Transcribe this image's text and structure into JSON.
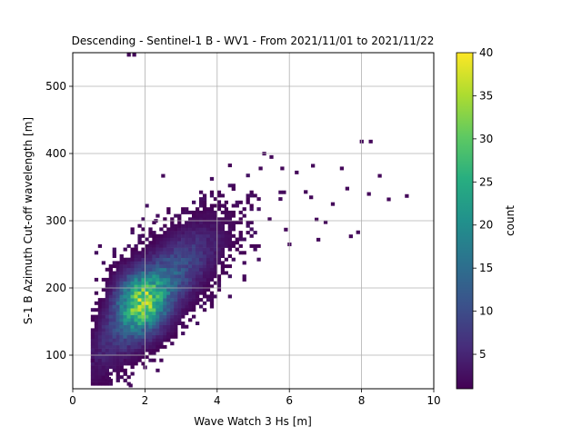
{
  "chart_data": {
    "type": "heatmap",
    "subtype": "2d-histogram",
    "title": "Descending - Sentinel-1 B - WV1 - From 2021/11/01 to 2021/11/22",
    "xlabel": "Wave Watch 3 Hs [m]",
    "ylabel": "S-1 B Azimuth Cut-off wavelength [m]",
    "xlim": [
      0,
      10
    ],
    "ylim": [
      50,
      550
    ],
    "xticks": [
      0,
      2,
      4,
      6,
      8,
      10
    ],
    "yticks": [
      100,
      200,
      300,
      400,
      500
    ],
    "grid": true,
    "colorbar": {
      "label": "count",
      "range": [
        1,
        40
      ],
      "ticks": [
        5,
        10,
        15,
        20,
        25,
        30,
        35,
        40
      ],
      "colormap": "viridis"
    },
    "density_model": {
      "description": "Joint distribution: cut-off wavelength rises with Hs; densest near Hs 1.8-2.0 m, cut-off 170-190 m (counts up to about 38)",
      "bin_width_x": 0.1,
      "bin_height_y": 5,
      "core_center": [
        1.9,
        180
      ],
      "peak_count": 38
    },
    "outlier_bins": [
      {
        "x": 1.55,
        "y": 547
      },
      {
        "x": 1.7,
        "y": 547
      },
      {
        "x": 2.5,
        "y": 367
      },
      {
        "x": 5.3,
        "y": 400
      },
      {
        "x": 5.5,
        "y": 395
      },
      {
        "x": 5.2,
        "y": 378
      },
      {
        "x": 5.8,
        "y": 378
      },
      {
        "x": 6.2,
        "y": 372
      },
      {
        "x": 6.65,
        "y": 382
      },
      {
        "x": 7.45,
        "y": 378
      },
      {
        "x": 8.0,
        "y": 418
      },
      {
        "x": 8.25,
        "y": 418
      },
      {
        "x": 8.5,
        "y": 367
      },
      {
        "x": 8.2,
        "y": 340
      },
      {
        "x": 8.75,
        "y": 332
      },
      {
        "x": 9.25,
        "y": 337
      },
      {
        "x": 7.9,
        "y": 283
      },
      {
        "x": 7.7,
        "y": 277
      },
      {
        "x": 7.0,
        "y": 298
      },
      {
        "x": 6.75,
        "y": 302
      },
      {
        "x": 7.2,
        "y": 325
      },
      {
        "x": 6.8,
        "y": 272
      },
      {
        "x": 5.9,
        "y": 287
      },
      {
        "x": 6.0,
        "y": 265
      },
      {
        "x": 0.55,
        "y": 92
      },
      {
        "x": 1.0,
        "y": 65
      },
      {
        "x": 1.6,
        "y": 55
      },
      {
        "x": 1.45,
        "y": 72
      },
      {
        "x": 2.0,
        "y": 82
      },
      {
        "x": 2.3,
        "y": 300
      },
      {
        "x": 1.95,
        "y": 278
      },
      {
        "x": 4.05,
        "y": 328
      },
      {
        "x": 4.2,
        "y": 322
      },
      {
        "x": 6.45,
        "y": 343
      },
      {
        "x": 6.6,
        "y": 335
      },
      {
        "x": 7.6,
        "y": 348
      }
    ]
  }
}
